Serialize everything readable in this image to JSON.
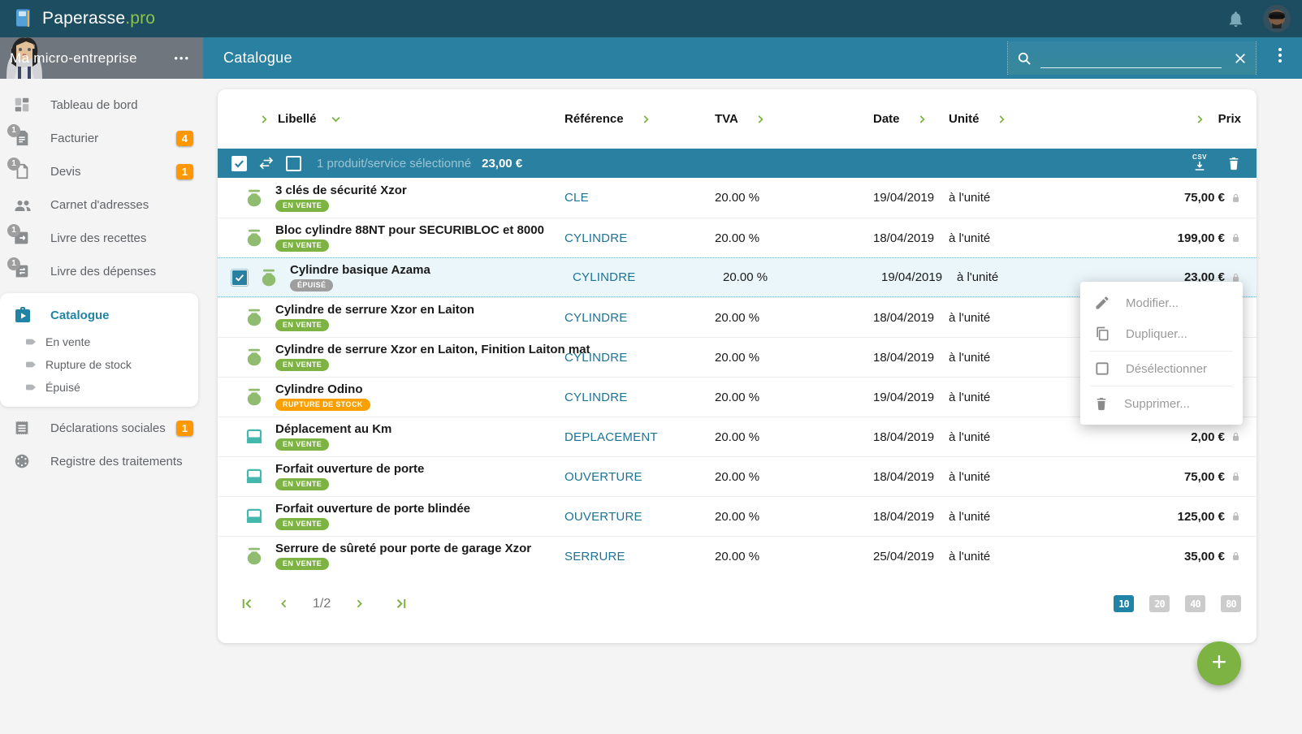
{
  "topbar": {
    "brand": "Paperasse",
    "brand_suffix": ".pro"
  },
  "subheader": {
    "company": "Ma micro-entreprise",
    "more": "•••",
    "page_title": "Catalogue"
  },
  "sidebar": {
    "items": [
      {
        "label": "Tableau de bord",
        "icon": "dashboard-icon",
        "badge": "",
        "icon_badge": ""
      },
      {
        "label": "Facturier",
        "icon": "invoice-icon",
        "badge": "4",
        "icon_badge": "1"
      },
      {
        "label": "Devis",
        "icon": "quote-icon",
        "badge": "1",
        "icon_badge": "1"
      },
      {
        "label": "Carnet d'adresses",
        "icon": "contacts-icon",
        "badge": "",
        "icon_badge": ""
      },
      {
        "label": "Livre des recettes",
        "icon": "income-book-icon",
        "badge": "",
        "icon_badge": "1"
      },
      {
        "label": "Livre des dépenses",
        "icon": "expense-book-icon",
        "badge": "",
        "icon_badge": "1"
      }
    ],
    "catalogue": {
      "label": "Catalogue",
      "sub": [
        "En vente",
        "Rupture de stock",
        "Épuisé"
      ]
    },
    "items_bottom": [
      {
        "label": "Déclarations sociales",
        "icon": "declarations-icon",
        "badge": "1",
        "icon_badge": ""
      },
      {
        "label": "Registre des traitements",
        "icon": "registry-icon",
        "badge": "",
        "icon_badge": ""
      }
    ]
  },
  "table": {
    "columns": [
      "Libellé",
      "Référence",
      "TVA",
      "Date",
      "Unité",
      "Prix"
    ],
    "selection": {
      "text": "1 produit/service sélectionné",
      "amount": "23,00 €"
    },
    "rows": [
      {
        "name": "3 clés de sécurité Xzor",
        "status": "EN VENTE",
        "status_type": "sale",
        "icon": "product",
        "reference": "CLE",
        "tva": "20.00 %",
        "date": "19/04/2019",
        "unit": "à l'unité",
        "price": "75,00 €",
        "selected": false
      },
      {
        "name": "Bloc cylindre 88NT pour SECURIBLOC et 8000",
        "status": "EN VENTE",
        "status_type": "sale",
        "icon": "product",
        "reference": "CYLINDRE",
        "tva": "20.00 %",
        "date": "18/04/2019",
        "unit": "à l'unité",
        "price": "199,00 €",
        "selected": false
      },
      {
        "name": "Cylindre basique Azama",
        "status": "ÉPUISÉ",
        "status_type": "depleted",
        "icon": "product",
        "reference": "CYLINDRE",
        "tva": "20.00 %",
        "date": "19/04/2019",
        "unit": "à l'unité",
        "price": "23,00 €",
        "selected": true
      },
      {
        "name": "Cylindre de serrure Xzor en Laiton",
        "status": "EN VENTE",
        "status_type": "sale",
        "icon": "product",
        "reference": "CYLINDRE",
        "tva": "20.00 %",
        "date": "18/04/2019",
        "unit": "à l'unité",
        "price": "",
        "selected": false
      },
      {
        "name": "Cylindre de serrure Xzor en Laiton, Finition Laiton mat",
        "status": "EN VENTE",
        "status_type": "sale",
        "icon": "product",
        "reference": "CYLINDRE",
        "tva": "20.00 %",
        "date": "18/04/2019",
        "unit": "à l'unité",
        "price": "",
        "selected": false
      },
      {
        "name": "Cylindre Odino",
        "status": "RUPTURE DE STOCK",
        "status_type": "out",
        "icon": "product",
        "reference": "CYLINDRE",
        "tva": "20.00 %",
        "date": "19/04/2019",
        "unit": "à l'unité",
        "price": "",
        "selected": false
      },
      {
        "name": "Déplacement au Km",
        "status": "EN VENTE",
        "status_type": "sale",
        "icon": "service",
        "reference": "DEPLACEMENT",
        "tva": "20.00 %",
        "date": "18/04/2019",
        "unit": "à l'unité",
        "price": "2,00 €",
        "selected": false
      },
      {
        "name": "Forfait ouverture de porte",
        "status": "EN VENTE",
        "status_type": "sale",
        "icon": "service",
        "reference": "OUVERTURE",
        "tva": "20.00 %",
        "date": "18/04/2019",
        "unit": "à l'unité",
        "price": "75,00 €",
        "selected": false
      },
      {
        "name": "Forfait ouverture de porte blindée",
        "status": "EN VENTE",
        "status_type": "sale",
        "icon": "service",
        "reference": "OUVERTURE",
        "tva": "20.00 %",
        "date": "18/04/2019",
        "unit": "à l'unité",
        "price": "125,00 €",
        "selected": false
      },
      {
        "name": "Serrure de sûreté pour porte de garage Xzor",
        "status": "EN VENTE",
        "status_type": "sale",
        "icon": "product",
        "reference": "SERRURE",
        "tva": "20.00 %",
        "date": "25/04/2019",
        "unit": "à l'unité",
        "price": "35,00 €",
        "selected": false
      }
    ]
  },
  "context_menu": {
    "items": [
      {
        "label": "Modifier...",
        "icon": "pencil-icon",
        "divider_before": false
      },
      {
        "label": "Dupliquer...",
        "icon": "copy-icon",
        "divider_before": false
      },
      {
        "label": "Désélectionner",
        "icon": "checkbox-outline-icon",
        "divider_before": true
      },
      {
        "label": "Supprimer...",
        "icon": "trash-icon",
        "divider_before": true
      }
    ]
  },
  "pagination": {
    "page": "1/2",
    "sizes": [
      "10",
      "20",
      "40",
      "80"
    ],
    "active_size": "10"
  },
  "fab": {
    "label": "+"
  },
  "export_label": "CSV",
  "colors": {
    "topbar": "#1d4d61",
    "teal": "#2a80a0",
    "accent_green": "#7cb342",
    "orange_badge": "#ff9800",
    "reference_text": "#1d7396",
    "status": {
      "sale": "#7cb342",
      "out": "#f9a000",
      "depleted": "#9e9e9e"
    }
  }
}
